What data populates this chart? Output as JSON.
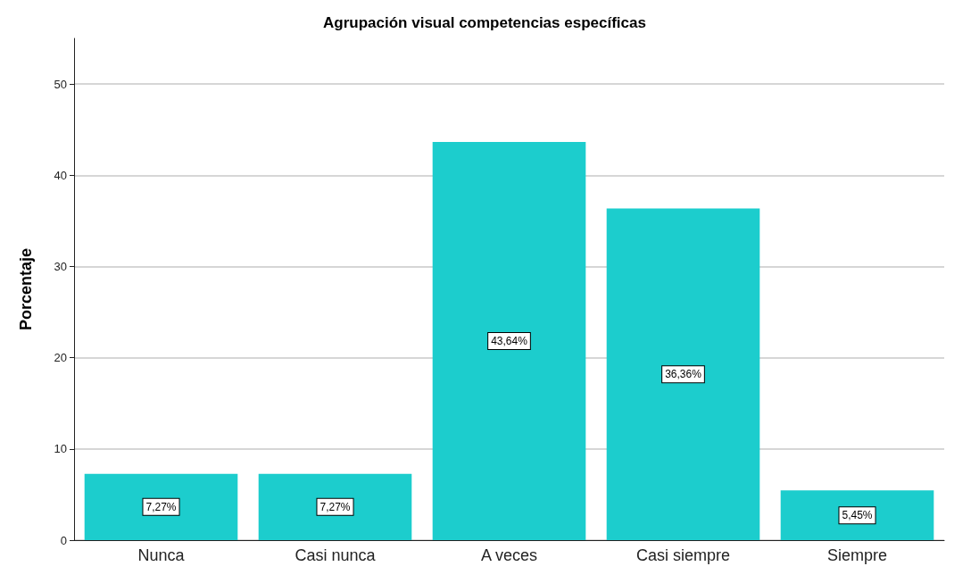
{
  "chart_data": {
    "type": "bar",
    "title": "Agrupación visual competencias específicas",
    "ylabel": "Porcentaje",
    "categories": [
      "Nunca",
      "Casi nunca",
      "A veces",
      "Casi siempre",
      "Siempre"
    ],
    "values": [
      7.27,
      7.27,
      43.64,
      36.36,
      5.45
    ],
    "value_labels": [
      "7,27%",
      "7,27%",
      "43,64%",
      "36,36%",
      "5,45%"
    ],
    "color": "#1ccdcd",
    "ylim": [
      0,
      55
    ],
    "yticks": [
      0,
      10,
      20,
      30,
      40,
      50
    ],
    "grid": "y"
  }
}
